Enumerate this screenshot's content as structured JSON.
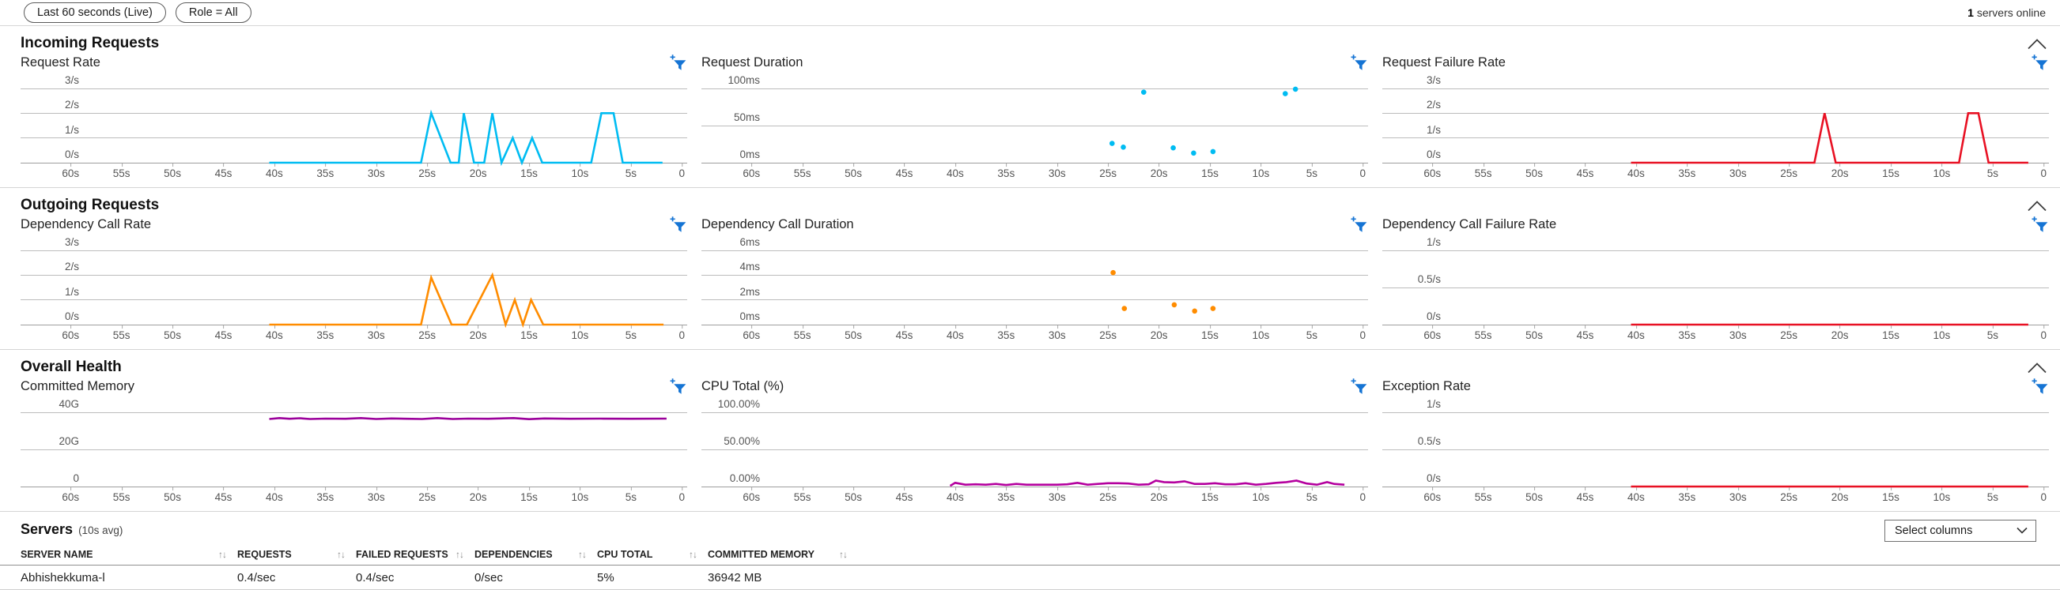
{
  "toolbar": {
    "time_range_label": "Last 60 seconds (Live)",
    "role_filter_label": "Role = All",
    "servers_online_count": "1",
    "servers_online_label": " servers online"
  },
  "icons": {
    "sort": "↑↓",
    "filter": "funnel-plus-icon",
    "collapse": "chevron-up-icon",
    "dropdown": "chevron-down-icon"
  },
  "colors": {
    "cyan": "#00bcf2",
    "orange": "#ff8c00",
    "red": "#e81123",
    "purple": "#9b009b",
    "magenta": "#b4009e",
    "accent_blue": "#1574d4"
  },
  "sections": [
    {
      "title": "Incoming Requests"
    },
    {
      "title": "Outgoing Requests"
    },
    {
      "title": "Overall Health"
    }
  ],
  "x_axis_labels": [
    "60s",
    "55s",
    "50s",
    "45s",
    "40s",
    "35s",
    "30s",
    "25s",
    "20s",
    "15s",
    "10s",
    "5s",
    "0"
  ],
  "chart_data": [
    {
      "title": "Request Rate",
      "type": "line",
      "color": "#00bcf2",
      "ymax": 3,
      "ylabels": [
        "3/s",
        "2/s",
        "1/s",
        "0/s"
      ],
      "x_unit": "seconds_ago",
      "x_range": [
        60,
        0
      ],
      "points": [
        [
          40.5,
          0
        ],
        [
          25.6,
          0
        ],
        [
          24.6,
          2
        ],
        [
          22.7,
          0
        ],
        [
          21.9,
          0
        ],
        [
          21.4,
          2
        ],
        [
          20.4,
          0
        ],
        [
          19.4,
          0
        ],
        [
          18.6,
          2
        ],
        [
          17.7,
          0
        ],
        [
          16.6,
          1
        ],
        [
          15.7,
          0
        ],
        [
          14.7,
          1
        ],
        [
          13.7,
          0
        ],
        [
          8.9,
          0
        ],
        [
          7.9,
          2
        ],
        [
          6.7,
          2
        ],
        [
          5.8,
          0
        ],
        [
          1.9,
          0
        ]
      ]
    },
    {
      "title": "Request Duration",
      "type": "scatter",
      "color": "#00bcf2",
      "ymax": 100,
      "ylabels": [
        "100ms",
        "50ms",
        "0ms"
      ],
      "x_unit": "seconds_ago",
      "x_range": [
        60,
        0
      ],
      "points": [
        [
          24.6,
          26
        ],
        [
          23.5,
          21
        ],
        [
          21.5,
          95
        ],
        [
          18.6,
          20
        ],
        [
          16.6,
          13
        ],
        [
          14.7,
          15
        ],
        [
          7.6,
          93
        ],
        [
          6.6,
          99
        ]
      ]
    },
    {
      "title": "Request Failure Rate",
      "type": "line",
      "color": "#e81123",
      "ymax": 3,
      "ylabels": [
        "3/s",
        "2/s",
        "1/s",
        "0/s"
      ],
      "x_unit": "seconds_ago",
      "x_range": [
        60,
        0
      ],
      "points": [
        [
          40.5,
          0
        ],
        [
          22.5,
          0
        ],
        [
          21.5,
          2
        ],
        [
          20.4,
          0
        ],
        [
          8.3,
          0
        ],
        [
          7.4,
          2
        ],
        [
          6.4,
          2
        ],
        [
          5.4,
          0
        ],
        [
          1.5,
          0
        ]
      ]
    },
    {
      "title": "Dependency Call Rate",
      "type": "line",
      "color": "#ff8c00",
      "ymax": 3,
      "ylabels": [
        "3/s",
        "2/s",
        "1/s",
        "0/s"
      ],
      "x_unit": "seconds_ago",
      "x_range": [
        60,
        0
      ],
      "points": [
        [
          40.5,
          0
        ],
        [
          25.6,
          0
        ],
        [
          24.6,
          1.9
        ],
        [
          22.6,
          0
        ],
        [
          21.1,
          0
        ],
        [
          18.6,
          2
        ],
        [
          17.3,
          0
        ],
        [
          16.4,
          1
        ],
        [
          15.6,
          0
        ],
        [
          14.8,
          1
        ],
        [
          13.6,
          0
        ],
        [
          1.8,
          0
        ]
      ]
    },
    {
      "title": "Dependency Call Duration",
      "type": "scatter",
      "color": "#ff8c00",
      "ymax": 6,
      "ylabels": [
        "6ms",
        "4ms",
        "2ms",
        "0ms"
      ],
      "x_unit": "seconds_ago",
      "x_range": [
        60,
        0
      ],
      "points": [
        [
          24.5,
          4.2
        ],
        [
          23.4,
          1.3
        ],
        [
          18.5,
          1.6
        ],
        [
          16.5,
          1.1
        ],
        [
          14.7,
          1.3
        ]
      ]
    },
    {
      "title": "Dependency Call Failure Rate",
      "type": "line",
      "color": "#e81123",
      "ymax": 1,
      "ylabels": [
        "1/s",
        "0.5/s",
        "0/s"
      ],
      "x_unit": "seconds_ago",
      "x_range": [
        60,
        0
      ],
      "points": [
        [
          40.5,
          0
        ],
        [
          1.5,
          0
        ]
      ]
    },
    {
      "title": "Committed Memory",
      "type": "line",
      "color": "#9b009b",
      "ymax": 40,
      "ylabels": [
        "40G",
        "20G",
        "0"
      ],
      "x_unit": "seconds_ago",
      "x_range": [
        60,
        0
      ],
      "points": [
        [
          40.5,
          36.4
        ],
        [
          39.5,
          36.9
        ],
        [
          38.5,
          36.5
        ],
        [
          37.5,
          36.8
        ],
        [
          36.5,
          36.4
        ],
        [
          35,
          36.6
        ],
        [
          33,
          36.5
        ],
        [
          31.5,
          36.9
        ],
        [
          30,
          36.4
        ],
        [
          28.5,
          36.7
        ],
        [
          27,
          36.5
        ],
        [
          25.5,
          36.4
        ],
        [
          24,
          36.9
        ],
        [
          22.5,
          36.4
        ],
        [
          21,
          36.6
        ],
        [
          19,
          36.5
        ],
        [
          16.5,
          36.9
        ],
        [
          15,
          36.3
        ],
        [
          13.5,
          36.7
        ],
        [
          11,
          36.5
        ],
        [
          8,
          36.6
        ],
        [
          5,
          36.5
        ],
        [
          1.5,
          36.6
        ]
      ]
    },
    {
      "title": "CPU Total (%)",
      "type": "line",
      "color": "#b4009e",
      "ymax": 100,
      "ylabels": [
        "100.00%",
        "50.00%",
        "0.00%"
      ],
      "x_unit": "seconds_ago",
      "x_range": [
        60,
        0
      ],
      "points": [
        [
          40.5,
          1
        ],
        [
          40,
          5
        ],
        [
          39,
          2.5
        ],
        [
          38,
          3
        ],
        [
          37,
          2.5
        ],
        [
          36,
          3.5
        ],
        [
          35,
          2
        ],
        [
          34,
          3.5
        ],
        [
          33,
          2.5
        ],
        [
          32,
          2.5
        ],
        [
          31,
          2.5
        ],
        [
          30,
          2.5
        ],
        [
          29,
          3
        ],
        [
          28,
          5
        ],
        [
          27,
          2.5
        ],
        [
          26,
          3.5
        ],
        [
          25,
          4.5
        ],
        [
          24,
          4.5
        ],
        [
          23,
          4
        ],
        [
          22,
          2.5
        ],
        [
          21,
          3
        ],
        [
          20.3,
          8
        ],
        [
          19.5,
          6
        ],
        [
          18.5,
          5.5
        ],
        [
          17.5,
          7
        ],
        [
          16.5,
          3.5
        ],
        [
          15.5,
          3.5
        ],
        [
          14.5,
          4.5
        ],
        [
          13.5,
          3
        ],
        [
          12.5,
          3
        ],
        [
          11.5,
          4.5
        ],
        [
          10.5,
          2.5
        ],
        [
          9.5,
          3.5
        ],
        [
          8.5,
          5
        ],
        [
          7.5,
          6
        ],
        [
          6.5,
          8
        ],
        [
          5.5,
          4
        ],
        [
          4.5,
          2.5
        ],
        [
          3.5,
          6
        ],
        [
          2.8,
          3.5
        ],
        [
          1.8,
          2.5
        ]
      ]
    },
    {
      "title": "Exception Rate",
      "type": "line",
      "color": "#e81123",
      "ymax": 1,
      "ylabels": [
        "1/s",
        "0.5/s",
        "0/s"
      ],
      "x_unit": "seconds_ago",
      "x_range": [
        60,
        0
      ],
      "points": [
        [
          40.5,
          0
        ],
        [
          1.5,
          0
        ]
      ]
    }
  ],
  "servers": {
    "title": "Servers",
    "subtitle": "(10s avg)",
    "select_columns_label": "Select columns",
    "columns": [
      "SERVER NAME",
      "REQUESTS",
      "FAILED REQUESTS",
      "DEPENDENCIES",
      "CPU TOTAL",
      "COMMITTED MEMORY"
    ],
    "rows": [
      [
        "Abhishekkuma-l",
        "0.4/sec",
        "0.4/sec",
        "0/sec",
        "5%",
        "36942 MB"
      ]
    ]
  }
}
